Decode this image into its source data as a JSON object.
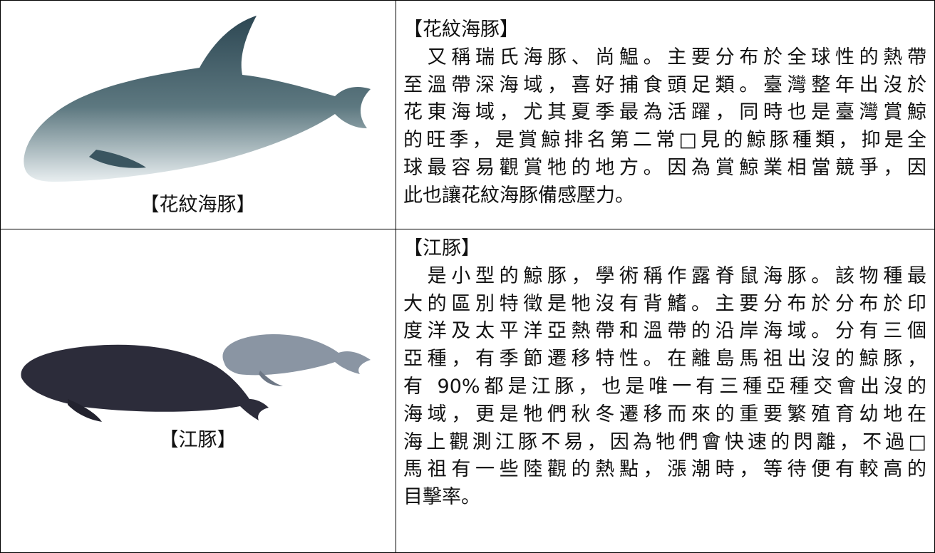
{
  "table": {
    "rows": [
      {
        "image_caption": "【花紋海豚】",
        "lines": [
          "【花紋海豚】",
          "　又稱瑞氏海豚、尚鰛。主要分布於全球性的熱帶",
          "至溫帶深海域，喜好捕食頭足類。臺灣整年出沒於",
          "花東海域，尤其夏季最為活躍，同時也是臺灣賞鯨",
          "的旺季，是賞鯨排名第二常□見的鯨豚種類，抑是全",
          "球最容易觀賞牠的地方。因為賞鯨業相當競爭，因",
          "此也讓花紋海豚備感壓力。"
        ]
      },
      {
        "image_caption": "【江豚】",
        "lines": [
          "【江豚】",
          "　是小型的鯨豚，學術稱作露脊鼠海豚。該物種最",
          "大的區別特徵是牠沒有背鰭。主要分布於分布於印",
          "度洋及太平洋亞熱帶和溫帶的沿岸海域。分有三個",
          "亞種，有季節遷移特性。在離島馬祖出沒的鯨豚，",
          "有 90%都是江豚，也是唯一有三種亞種交會出沒的",
          "海域，更是牠們秋冬遷移而來的重要繁殖育幼地在",
          "海上觀測江豚不易，因為牠們會快速的閃離，不過□",
          "馬祖有一些陸觀的熱點，漲潮時，等待便有較高的",
          "目擊率。"
        ]
      }
    ]
  }
}
